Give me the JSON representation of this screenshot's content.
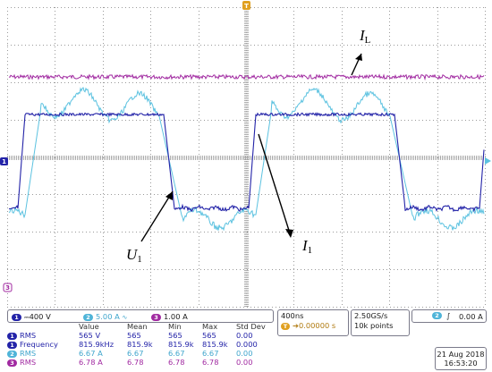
{
  "annotations": {
    "il_main": "I",
    "il_sub": "L",
    "u1_main": "U",
    "u1_sub": "1",
    "i1_main": "I",
    "i1_sub": "1"
  },
  "markers": {
    "ch1": "1",
    "ch3": "3",
    "ch2": "2",
    "ch3_right": "3",
    "trig": "T"
  },
  "colors": {
    "ch1": "#2323a8",
    "ch2": "#4fb4d8",
    "ch3": "#a12aa1",
    "trigger": "#e0a020"
  },
  "status_bar": {
    "channels": [
      {
        "num": "1",
        "scale": "400 V",
        "coupling_icon": "dc-coupling-icon"
      },
      {
        "num": "2",
        "scale": "5.00 A",
        "coupling_icon": "ac-coupling-icon"
      },
      {
        "num": "3",
        "scale": "1.00 A",
        "coupling_icon": ""
      }
    ],
    "timebase": "400ns",
    "trigger_pos": "0.00000 s",
    "sample_rate": "2.50GS/s",
    "record_length": "10k points",
    "trigger_channel": "2",
    "trigger_slope_icon": "rising-edge-icon",
    "trigger_level": "0.00 A",
    "date": "21 Aug 2018",
    "time": "16:53:20"
  },
  "measurements": {
    "headers": [
      "Value",
      "Mean",
      "Min",
      "Max",
      "Std Dev"
    ],
    "rows": [
      {
        "ch": "1",
        "name": "RMS",
        "value": "565 V",
        "mean": "565",
        "min": "565",
        "max": "565",
        "std": "0.00"
      },
      {
        "ch": "1",
        "name": "Frequency",
        "value": "815.9kHz",
        "mean": "815.9k",
        "min": "815.9k",
        "max": "815.9k",
        "std": "0.000"
      },
      {
        "ch": "2",
        "name": "RMS",
        "value": "6.67 A",
        "mean": "6.67",
        "min": "6.67",
        "max": "6.67",
        "std": "0.00"
      },
      {
        "ch": "3",
        "name": "RMS",
        "value": "6.78 A",
        "mean": "6.78",
        "min": "6.78",
        "max": "6.78",
        "std": "0.00"
      }
    ]
  }
}
